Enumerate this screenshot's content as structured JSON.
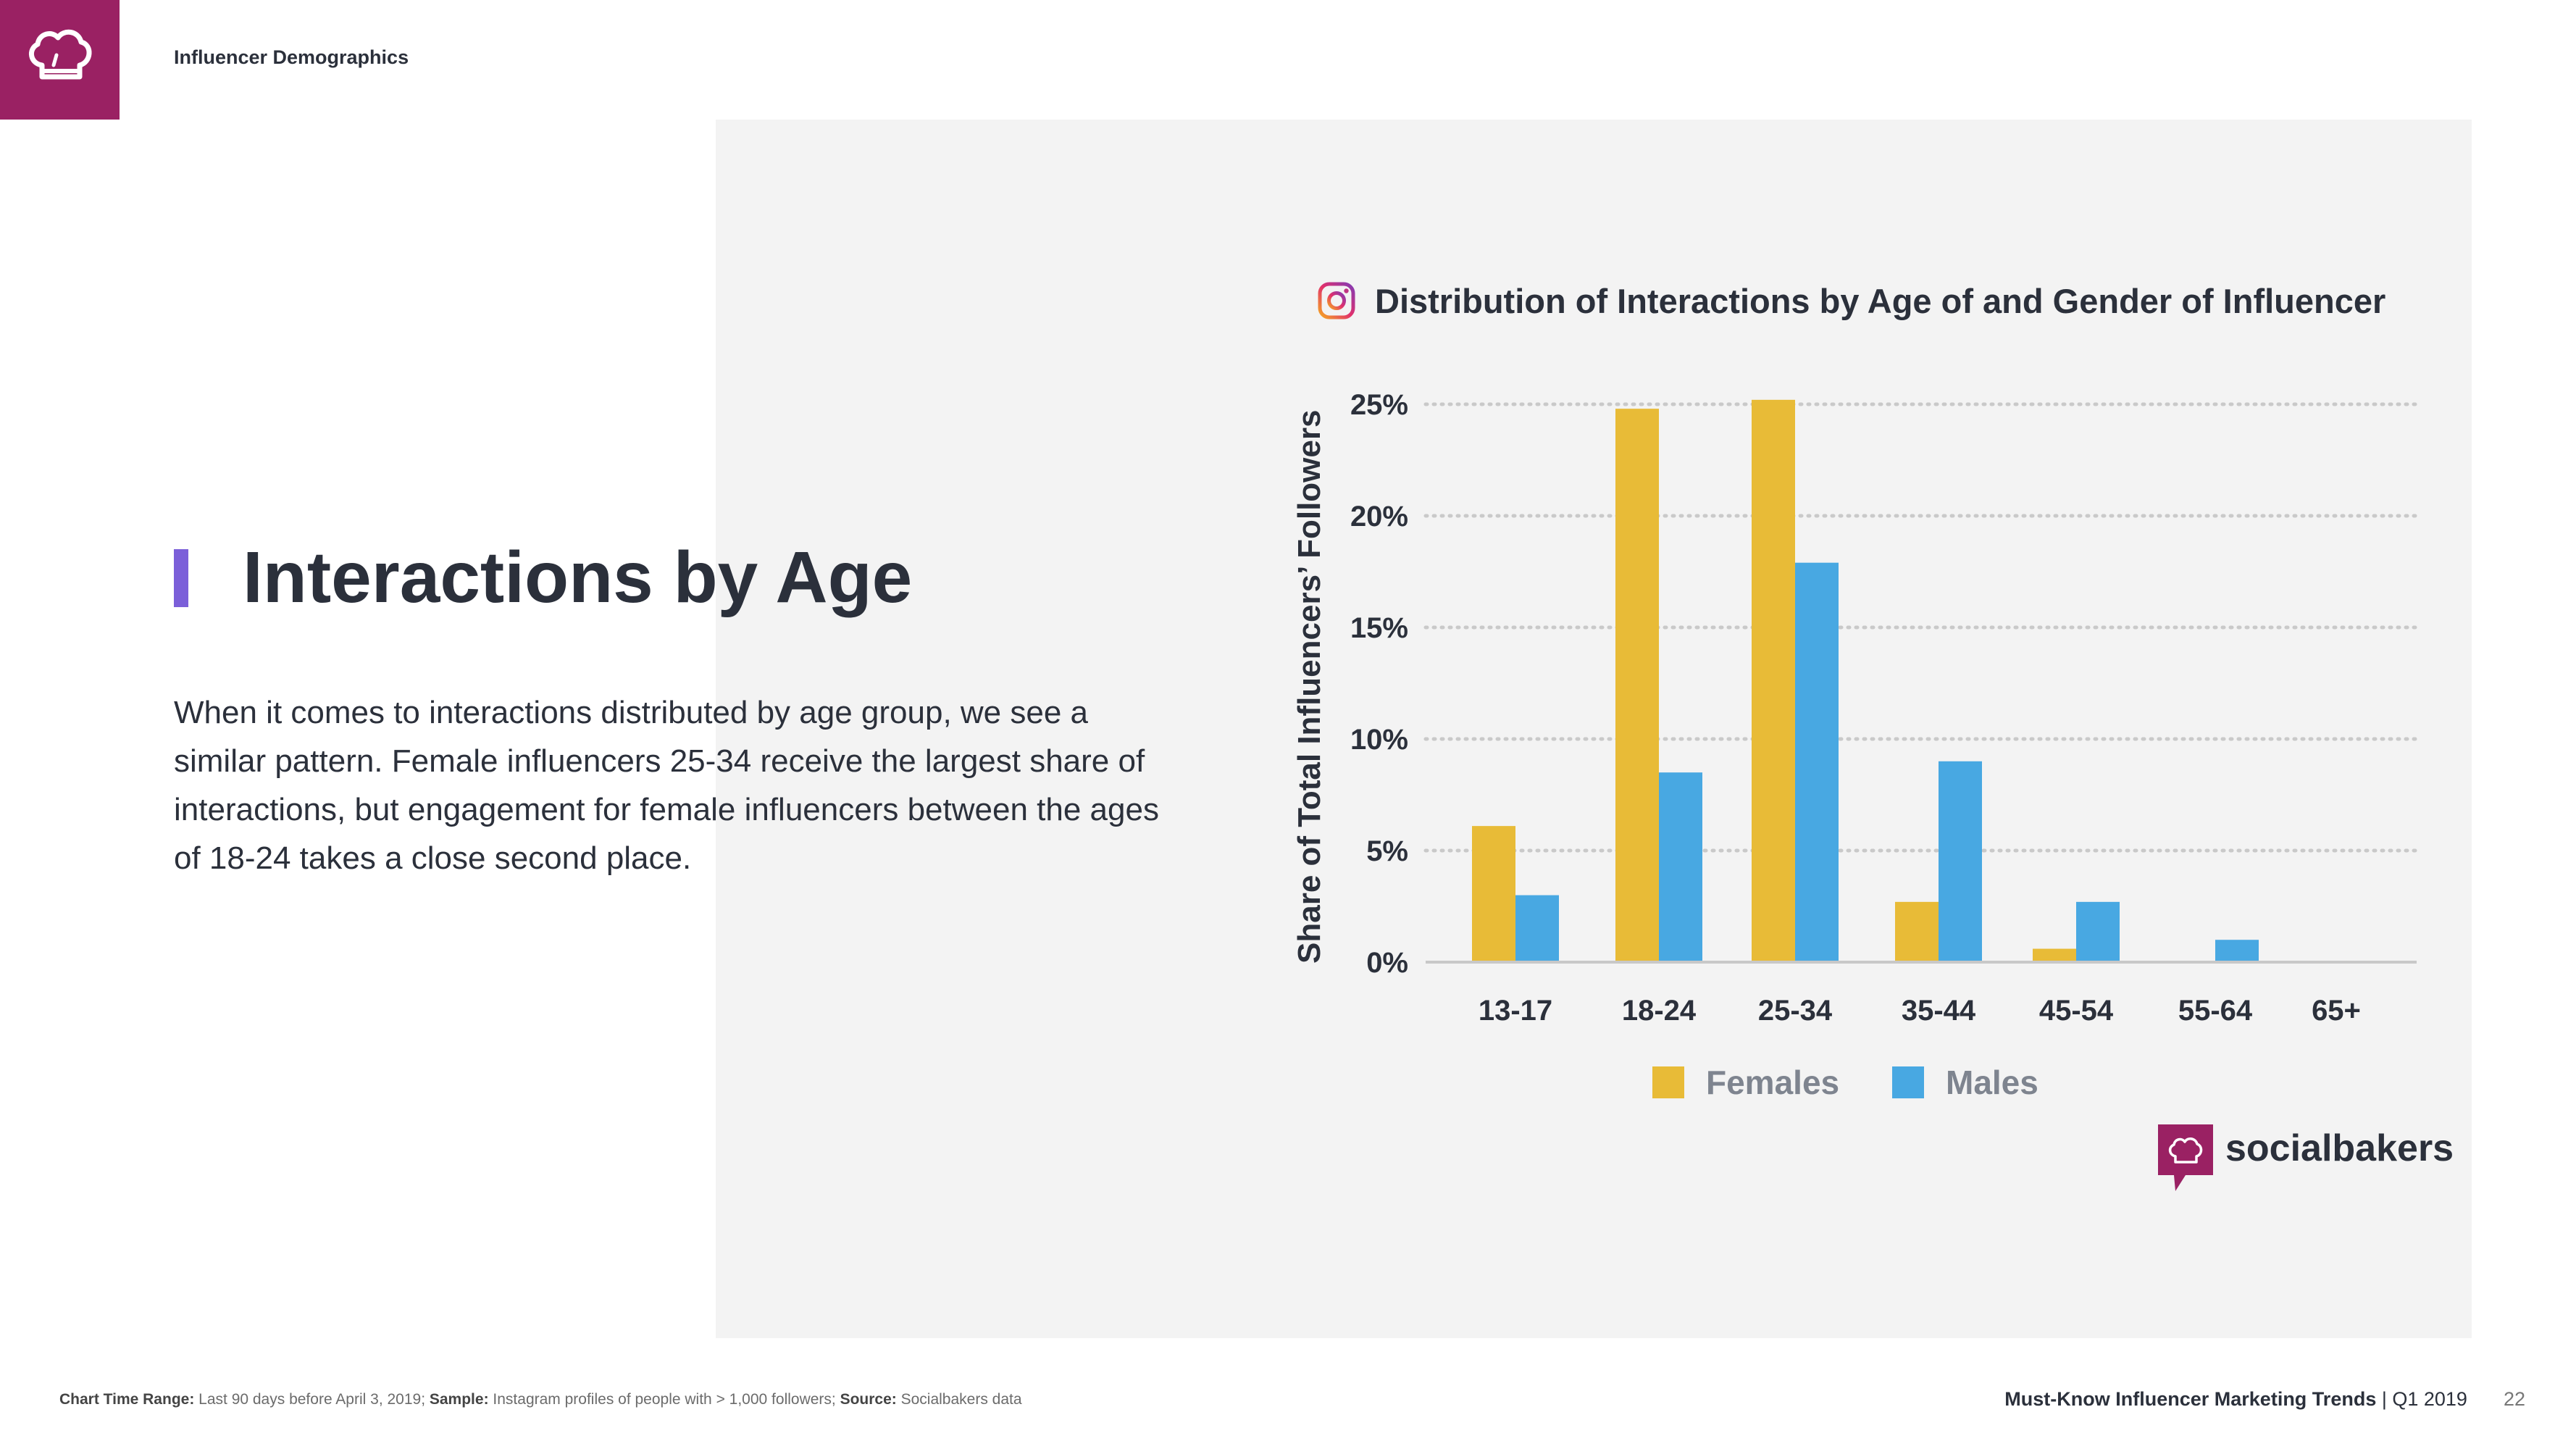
{
  "header": {
    "section_label": "Influencer Demographics"
  },
  "main": {
    "heading": "Interactions by Age",
    "body": "When it comes to interactions distributed by age group, we see a similar pattern. Female influencers 25-34 receive the largest share of interactions, but engagement for female influencers between the ages of 18-24 takes a close second place."
  },
  "brand": {
    "name": "socialbakers",
    "color": "#9a2163"
  },
  "colors": {
    "females": "#e8bb37",
    "males": "#48a8e2",
    "accent": "#7b5fd9",
    "panel": "#f3f3f3"
  },
  "chart_data": {
    "type": "bar",
    "title": "Distribution of Interactions by Age of and Gender of Influencer",
    "title_icon": "instagram-icon",
    "ylabel": "Share of Total Influencers’ Followers",
    "xlabel": "",
    "categories": [
      "13-17",
      "18-24",
      "25-34",
      "35-44",
      "45-54",
      "55-64",
      "65+"
    ],
    "series": [
      {
        "name": "Females",
        "values": [
          6.1,
          24.8,
          25.2,
          2.7,
          0.6,
          0,
          0
        ]
      },
      {
        "name": "Males",
        "values": [
          3.0,
          8.5,
          17.9,
          9.0,
          2.7,
          1.0,
          0
        ]
      }
    ],
    "ylim": [
      0,
      25
    ],
    "yticks": [
      0,
      5,
      10,
      15,
      20,
      25
    ],
    "ytick_format": "%",
    "grid": true,
    "legend_position": "bottom-center"
  },
  "footer": {
    "time_range_label": "Chart Time Range:",
    "time_range_value": " Last 90 days before April 3, 2019; ",
    "sample_label": "Sample:",
    "sample_value": " Instagram profiles of people with > 1,000 followers; ",
    "source_label": "Source:",
    "source_value": " Socialbakers data",
    "report_title": "Must-Know Influencer Marketing Trends",
    "report_period": " | Q1 2019",
    "page_number": "22"
  }
}
